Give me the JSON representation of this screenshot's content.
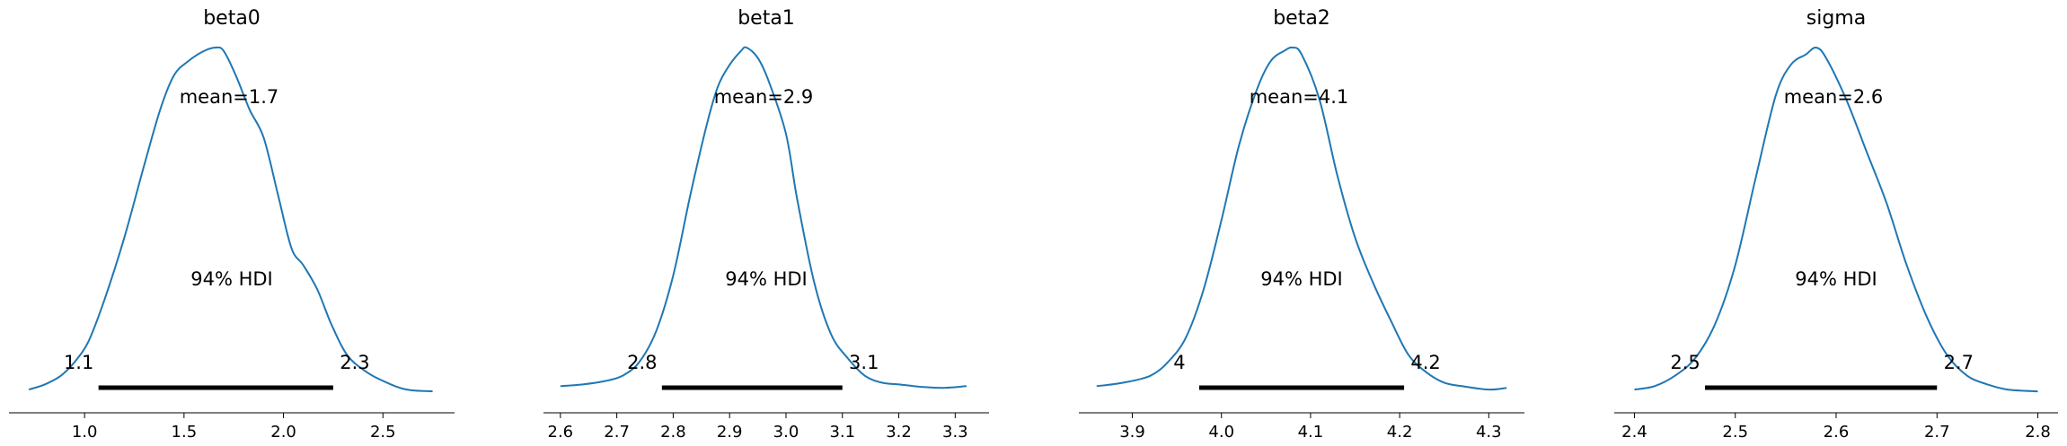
{
  "chart_data": [
    {
      "type": "kde",
      "title": "beta0",
      "mean_label": "mean=1.7",
      "hdi_label": "94% HDI",
      "hdi": [
        1.07,
        2.25
      ],
      "hdi_low_label": "1.1",
      "hdi_high_label": "2.3",
      "xlim": [
        0.62,
        2.86
      ],
      "xticks": [
        1.0,
        1.5,
        2.0,
        2.5
      ],
      "xtick_labels": [
        "1.0",
        "1.5",
        "2.0",
        "2.5"
      ],
      "curve": {
        "x": [
          0.72,
          0.8,
          0.88,
          0.95,
          1.02,
          1.1,
          1.2,
          1.3,
          1.38,
          1.45,
          1.52,
          1.6,
          1.66,
          1.7,
          1.76,
          1.83,
          1.9,
          1.97,
          2.04,
          2.1,
          2.17,
          2.24,
          2.32,
          2.42,
          2.52,
          2.62,
          2.75
        ],
        "y": [
          0.01,
          0.025,
          0.05,
          0.09,
          0.15,
          0.27,
          0.45,
          0.66,
          0.82,
          0.92,
          0.96,
          0.99,
          1.0,
          0.99,
          0.92,
          0.82,
          0.74,
          0.58,
          0.42,
          0.37,
          0.3,
          0.2,
          0.11,
          0.06,
          0.03,
          0.01,
          0.005
        ]
      }
    },
    {
      "type": "kde",
      "title": "beta1",
      "mean_label": "mean=2.9",
      "hdi_label": "94% HDI",
      "hdi": [
        2.78,
        3.1
      ],
      "hdi_low_label": "2.8",
      "hdi_high_label": "3.1",
      "xlim": [
        2.57,
        3.36
      ],
      "xticks": [
        2.6,
        2.7,
        2.8,
        2.9,
        3.0,
        3.1,
        3.2,
        3.3
      ],
      "xtick_labels": [
        "2.6",
        "2.7",
        "2.8",
        "2.9",
        "3.0",
        "3.1",
        "3.2",
        "3.3"
      ],
      "curve": {
        "x": [
          2.6,
          2.64,
          2.68,
          2.71,
          2.74,
          2.77,
          2.8,
          2.83,
          2.86,
          2.88,
          2.9,
          2.92,
          2.93,
          2.95,
          2.97,
          3.0,
          3.02,
          3.05,
          3.08,
          3.11,
          3.14,
          3.17,
          3.2,
          3.24,
          3.28,
          3.32
        ],
        "y": [
          0.02,
          0.025,
          0.035,
          0.05,
          0.09,
          0.18,
          0.34,
          0.57,
          0.78,
          0.89,
          0.95,
          0.99,
          1.0,
          0.97,
          0.9,
          0.75,
          0.56,
          0.32,
          0.17,
          0.1,
          0.05,
          0.03,
          0.025,
          0.018,
          0.015,
          0.02
        ]
      }
    },
    {
      "type": "kde",
      "title": "beta2",
      "mean_label": "mean=4.1",
      "hdi_label": "94% HDI",
      "hdi": [
        3.975,
        4.205
      ],
      "hdi_low_label": "4",
      "hdi_high_label": "4.2",
      "xlim": [
        3.84,
        4.34
      ],
      "xticks": [
        3.9,
        4.0,
        4.1,
        4.2,
        4.3
      ],
      "xtick_labels": [
        "3.9",
        "4.0",
        "4.1",
        "4.2",
        "4.3"
      ],
      "curve": {
        "x": [
          3.86,
          3.89,
          3.92,
          3.94,
          3.96,
          3.98,
          4.0,
          4.02,
          4.04,
          4.055,
          4.07,
          4.08,
          4.09,
          4.11,
          4.13,
          4.15,
          4.17,
          4.19,
          4.21,
          4.23,
          4.25,
          4.27,
          4.3,
          4.32
        ],
        "y": [
          0.02,
          0.03,
          0.05,
          0.09,
          0.16,
          0.3,
          0.5,
          0.72,
          0.88,
          0.96,
          0.99,
          1.0,
          0.98,
          0.85,
          0.63,
          0.45,
          0.32,
          0.21,
          0.11,
          0.06,
          0.03,
          0.02,
          0.01,
          0.015
        ]
      }
    },
    {
      "type": "kde",
      "title": "sigma",
      "mean_label": "mean=2.6",
      "hdi_label": "94% HDI",
      "hdi": [
        2.47,
        2.7
      ],
      "hdi_low_label": "2.5",
      "hdi_high_label": "2.7",
      "xlim": [
        2.38,
        2.82
      ],
      "xticks": [
        2.4,
        2.5,
        2.6,
        2.7,
        2.8
      ],
      "xtick_labels": [
        "2.4",
        "2.5",
        "2.6",
        "2.7",
        "2.8"
      ],
      "curve": {
        "x": [
          2.4,
          2.42,
          2.44,
          2.46,
          2.48,
          2.5,
          2.52,
          2.54,
          2.555,
          2.57,
          2.58,
          2.59,
          2.61,
          2.63,
          2.65,
          2.67,
          2.69,
          2.71,
          2.73,
          2.75,
          2.77,
          2.8
        ],
        "y": [
          0.01,
          0.02,
          0.05,
          0.1,
          0.2,
          0.37,
          0.62,
          0.86,
          0.95,
          0.98,
          1.0,
          0.97,
          0.85,
          0.7,
          0.55,
          0.37,
          0.22,
          0.11,
          0.05,
          0.025,
          0.01,
          0.005
        ]
      }
    }
  ]
}
